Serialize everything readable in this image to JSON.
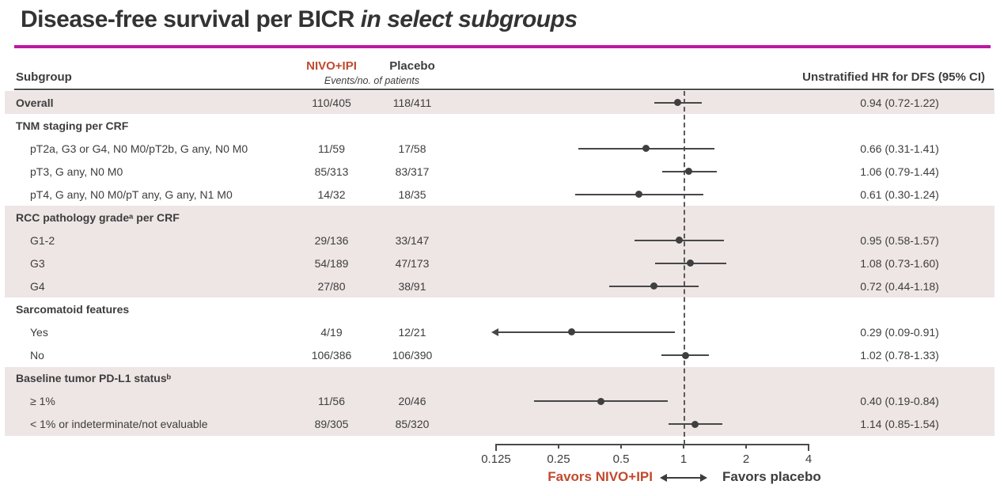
{
  "title": {
    "main": "Disease-free survival per BICR ",
    "emphasis": "in select subgroups"
  },
  "colors": {
    "magenta_rule": "#bd18a2",
    "nivo_red": "#c04a2e",
    "shaded_row": "#eee5e5",
    "marker": "#3f3f3f"
  },
  "header": {
    "subgroup": "Subgroup",
    "nivo": "NIVO+IPI",
    "placebo": "Placebo",
    "events_note": "Events/no. of patients",
    "hr": "Unstratified HR for DFS (95% CI)"
  },
  "chart_data": {
    "type": "forest",
    "x_axis": {
      "scale": "log2",
      "min": 0.125,
      "max": 4,
      "ticks": [
        "0.125",
        "0.25",
        "0.5",
        "1",
        "2",
        "4"
      ],
      "reference_line": 1
    },
    "legend": {
      "left": "Favors NIVO+IPI",
      "right": "Favors placebo"
    },
    "rows": [
      {
        "label": "Overall",
        "level": "group",
        "shaded": true,
        "nivo": "110/405",
        "placebo": "118/411",
        "hr": "0.94 (0.72-1.22)",
        "est": 0.94,
        "lo": 0.72,
        "hi": 1.22
      },
      {
        "label": "TNM staging per CRF",
        "level": "group",
        "shaded": false
      },
      {
        "label": "pT2a, G3 or G4, N0 M0/pT2b, G any, N0 M0",
        "level": "item",
        "shaded": false,
        "nivo": "11/59",
        "placebo": "17/58",
        "hr": "0.66 (0.31-1.41)",
        "est": 0.66,
        "lo": 0.31,
        "hi": 1.41
      },
      {
        "label": "pT3, G any, N0 M0",
        "level": "item",
        "shaded": false,
        "nivo": "85/313",
        "placebo": "83/317",
        "hr": "1.06 (0.79-1.44)",
        "est": 1.06,
        "lo": 0.79,
        "hi": 1.44
      },
      {
        "label": "pT4, G any, N0 M0/pT any, G any, N1 M0",
        "level": "item",
        "shaded": false,
        "nivo": "14/32",
        "placebo": "18/35",
        "hr": "0.61 (0.30-1.24)",
        "est": 0.61,
        "lo": 0.3,
        "hi": 1.24
      },
      {
        "label": "RCC pathology gradeᵃ per CRF",
        "level": "group",
        "shaded": true
      },
      {
        "label": "G1-2",
        "level": "item",
        "shaded": true,
        "nivo": "29/136",
        "placebo": "33/147",
        "hr": "0.95 (0.58-1.57)",
        "est": 0.95,
        "lo": 0.58,
        "hi": 1.57
      },
      {
        "label": "G3",
        "level": "item",
        "shaded": true,
        "nivo": "54/189",
        "placebo": "47/173",
        "hr": "1.08 (0.73-1.60)",
        "est": 1.08,
        "lo": 0.73,
        "hi": 1.6
      },
      {
        "label": "G4",
        "level": "item",
        "shaded": true,
        "nivo": "27/80",
        "placebo": "38/91",
        "hr": "0.72 (0.44-1.18)",
        "est": 0.72,
        "lo": 0.44,
        "hi": 1.18
      },
      {
        "label": "Sarcomatoid features",
        "level": "group",
        "shaded": false
      },
      {
        "label": "Yes",
        "level": "item",
        "shaded": false,
        "nivo": "4/19",
        "placebo": "12/21",
        "hr": "0.29 (0.09-0.91)",
        "est": 0.29,
        "lo": 0.09,
        "hi": 0.91,
        "clipped_low": true
      },
      {
        "label": "No",
        "level": "item",
        "shaded": false,
        "nivo": "106/386",
        "placebo": "106/390",
        "hr": "1.02 (0.78-1.33)",
        "est": 1.02,
        "lo": 0.78,
        "hi": 1.33
      },
      {
        "label": "Baseline tumor PD-L1 statusᵇ",
        "level": "group",
        "shaded": true
      },
      {
        "label": "≥ 1%",
        "level": "item",
        "shaded": true,
        "nivo": "11/56",
        "placebo": "20/46",
        "hr": "0.40 (0.19-0.84)",
        "est": 0.4,
        "lo": 0.19,
        "hi": 0.84
      },
      {
        "label": "< 1% or indeterminate/not evaluable",
        "level": "item",
        "shaded": true,
        "nivo": "89/305",
        "placebo": "85/320",
        "hr": "1.14 (0.85-1.54)",
        "est": 1.14,
        "lo": 0.85,
        "hi": 1.54
      }
    ]
  }
}
